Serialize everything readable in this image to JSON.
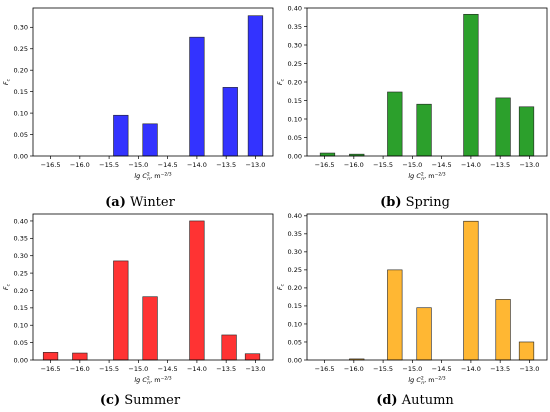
{
  "chart_data": [
    {
      "type": "bar",
      "caption_letter": "(a)",
      "caption_text": " Winter",
      "color": "#3333ff",
      "ylabel": "F",
      "ylabel_sub": "c",
      "xlabel_main": "lg C",
      "xlabel_sub": "n",
      "xlabel_sup": "2",
      "xlabel_unit": ", m",
      "xlabel_unit_sup": "−2/3",
      "xlim": [
        -16.8,
        -12.7
      ],
      "ylim": [
        0,
        0.345
      ],
      "xticks": [
        -16.5,
        -16.0,
        -15.5,
        -15.0,
        -14.5,
        -14.0,
        -13.5,
        -13.0
      ],
      "xtick_labels": [
        "−16.5",
        "−16.0",
        "−15.5",
        "−15.0",
        "−14.5",
        "−14.0",
        "−13.5",
        "−13.0"
      ],
      "yticks": [
        0,
        0.05,
        0.1,
        0.15,
        0.2,
        0.25,
        0.3
      ],
      "ytick_labels": [
        "0.00",
        "0.05",
        "0.10",
        "0.15",
        "0.20",
        "0.25",
        "0.30"
      ],
      "bar_centers": [
        -16.3,
        -15.85,
        -15.3,
        -14.8,
        -14.0,
        -13.43,
        -13.0
      ],
      "values": [
        0.0,
        0.0,
        0.095,
        0.075,
        0.277,
        0.16,
        0.327
      ]
    },
    {
      "type": "bar",
      "caption_letter": "(b)",
      "caption_text": " Spring",
      "color": "#2ca02c",
      "ylabel": "F",
      "ylabel_sub": "c",
      "xlabel_main": "lg C",
      "xlabel_sub": "n",
      "xlabel_sup": "2",
      "xlabel_unit": ", m",
      "xlabel_unit_sup": "−2/3",
      "xlim": [
        -16.8,
        -12.7
      ],
      "ylim": [
        0,
        0.4
      ],
      "xticks": [
        -16.5,
        -16.0,
        -15.5,
        -15.0,
        -14.5,
        -14.0,
        -13.5,
        -13.0
      ],
      "xtick_labels": [
        "−16.5",
        "−16.0",
        "−15.5",
        "−15.0",
        "−14.5",
        "−14.0",
        "−13.5",
        "−13.0"
      ],
      "yticks": [
        0,
        0.05,
        0.1,
        0.15,
        0.2,
        0.25,
        0.3,
        0.35,
        0.4
      ],
      "ytick_labels": [
        "0.00",
        "0.05",
        "0.10",
        "0.15",
        "0.20",
        "0.25",
        "0.30",
        "0.35",
        "0.40"
      ],
      "bar_centers": [
        -16.45,
        -15.95,
        -15.3,
        -14.8,
        -14.0,
        -13.45,
        -13.05
      ],
      "values": [
        0.008,
        0.005,
        0.173,
        0.14,
        0.383,
        0.157,
        0.133
      ]
    },
    {
      "type": "bar",
      "caption_letter": "(c)",
      "caption_text": " Summer",
      "color": "#ff3333",
      "ylabel": "F",
      "ylabel_sub": "c",
      "xlabel_main": "lg C",
      "xlabel_sub": "n",
      "xlabel_sup": "2",
      "xlabel_unit": ", m",
      "xlabel_unit_sup": "−2/3",
      "xlim": [
        -16.8,
        -12.7
      ],
      "ylim": [
        0,
        0.42
      ],
      "xticks": [
        -16.5,
        -16.0,
        -15.5,
        -15.0,
        -14.5,
        -14.0,
        -13.5,
        -13.0
      ],
      "xtick_labels": [
        "−16.5",
        "−16.0",
        "−15.5",
        "−15.0",
        "−14.5",
        "−14.0",
        "−13.5",
        "−13.0"
      ],
      "yticks": [
        0,
        0.05,
        0.1,
        0.15,
        0.2,
        0.25,
        0.3,
        0.35,
        0.4
      ],
      "ytick_labels": [
        "0.00",
        "0.05",
        "0.10",
        "0.15",
        "0.20",
        "0.25",
        "0.30",
        "0.35",
        "0.40"
      ],
      "bar_centers": [
        -16.5,
        -16.0,
        -15.3,
        -14.8,
        -14.0,
        -13.45,
        -13.05
      ],
      "values": [
        0.022,
        0.02,
        0.285,
        0.182,
        0.4,
        0.072,
        0.018
      ]
    },
    {
      "type": "bar",
      "caption_letter": "(d)",
      "caption_text": " Autumn",
      "color": "#ffb733",
      "ylabel": "F",
      "ylabel_sub": "c",
      "xlabel_main": "lg C",
      "xlabel_sub": "n",
      "xlabel_sup": "2",
      "xlabel_unit": ", m",
      "xlabel_unit_sup": "−2/3",
      "xlim": [
        -16.8,
        -12.7
      ],
      "ylim": [
        0,
        0.405
      ],
      "xticks": [
        -16.5,
        -16.0,
        -15.5,
        -15.0,
        -14.5,
        -14.0,
        -13.5,
        -13.0
      ],
      "xtick_labels": [
        "−16.5",
        "−16.0",
        "−15.5",
        "−15.0",
        "−14.5",
        "−14.0",
        "−13.5",
        "−13.0"
      ],
      "yticks": [
        0,
        0.05,
        0.1,
        0.15,
        0.2,
        0.25,
        0.3,
        0.35,
        0.4
      ],
      "ytick_labels": [
        "0.00",
        "0.05",
        "0.10",
        "0.15",
        "0.20",
        "0.25",
        "0.30",
        "0.35",
        "0.40"
      ],
      "bar_centers": [
        -16.45,
        -15.95,
        -15.3,
        -14.8,
        -14.0,
        -13.45,
        -13.05
      ],
      "values": [
        0.0,
        0.003,
        0.25,
        0.145,
        0.385,
        0.168,
        0.05
      ]
    }
  ]
}
